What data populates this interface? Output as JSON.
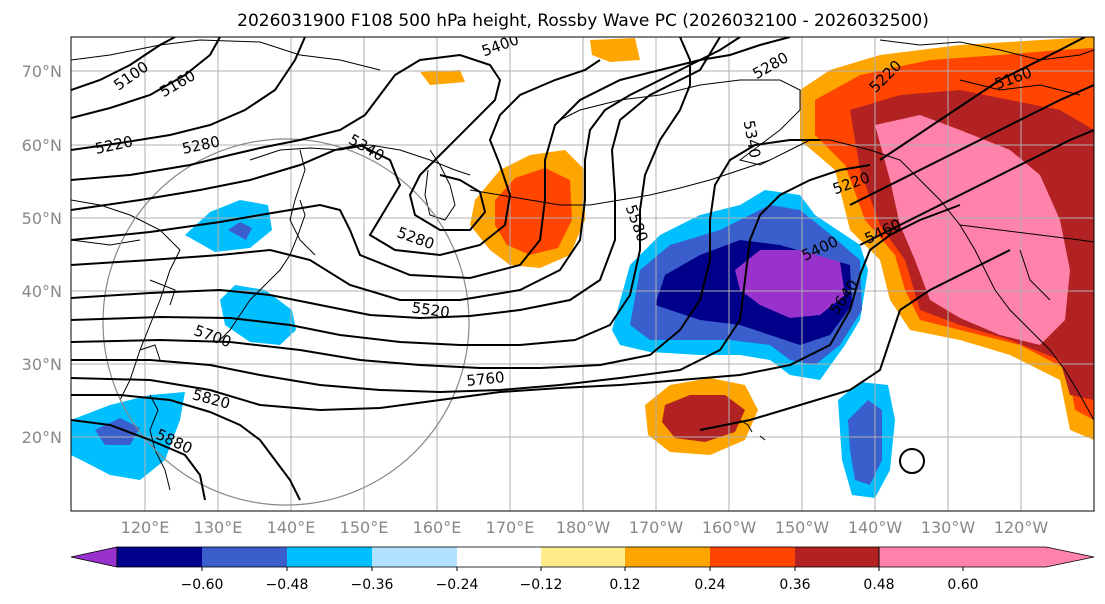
{
  "title": "2026031900 F108 500 hPa height, Rossby Wave PC (2026032100 - 2026032500)",
  "map": {
    "lat_labels": [
      "70°N",
      "60°N",
      "50°N",
      "40°N",
      "30°N",
      "20°N"
    ],
    "lon_labels": [
      "120°E",
      "130°E",
      "140°E",
      "150°E",
      "160°E",
      "170°E",
      "180°W",
      "170°W",
      "160°W",
      "150°W",
      "140°W",
      "130°W",
      "120°W"
    ],
    "contour_labels": [
      "5100",
      "5160",
      "5220",
      "5280",
      "5340",
      "5400",
      "5280",
      "5520",
      "5760",
      "5820",
      "5880",
      "5700",
      "5580",
      "5340",
      "5280",
      "5220",
      "5160",
      "5220",
      "5400",
      "5460",
      "5640"
    ]
  },
  "colorbar": {
    "tick_labels": [
      "−0.60",
      "−0.48",
      "−0.36",
      "−0.24",
      "−0.12",
      "0.12",
      "0.24",
      "0.36",
      "0.48",
      "0.60"
    ],
    "colors": [
      "#9932cc",
      "#00008b",
      "#3a5fcd",
      "#00bfff",
      "#b0e2ff",
      "#ffffff",
      "#ffec8b",
      "#ffa500",
      "#ff4500",
      "#b22222",
      "#ff82ab"
    ]
  }
}
